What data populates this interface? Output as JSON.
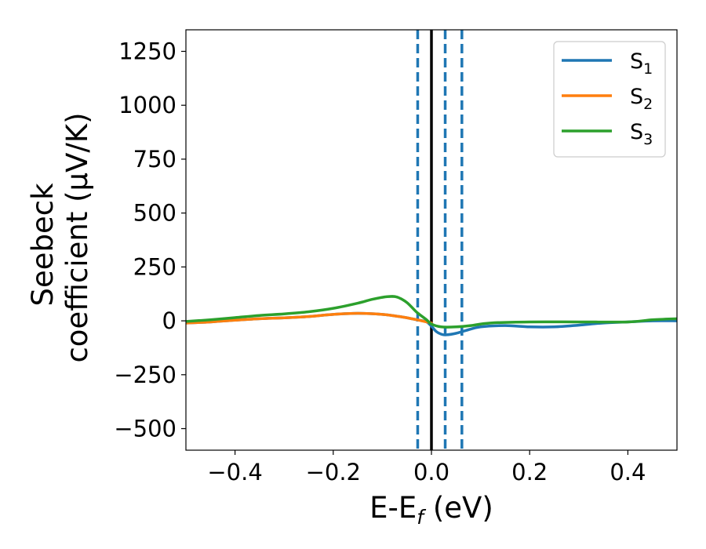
{
  "chart_data": {
    "type": "line",
    "xlabel": {
      "main": "E-E",
      "sub": "f",
      "suffix": " (eV)"
    },
    "ylabel": {
      "line1": "Seebeck",
      "line2": "coefficient  (μV/K)"
    },
    "xlim": [
      -0.5,
      0.5
    ],
    "ylim": [
      -600,
      1350
    ],
    "x_ticks": [
      -0.4,
      -0.2,
      0.0,
      0.2,
      0.4
    ],
    "x_tick_labels": [
      "−0.4",
      "−0.2",
      "0.0",
      "0.2",
      "0.4"
    ],
    "y_ticks": [
      -500,
      -250,
      0,
      250,
      500,
      750,
      1000,
      1250
    ],
    "y_tick_labels": [
      "−500",
      "−250",
      "0",
      "250",
      "500",
      "750",
      "1000",
      "1250"
    ],
    "grid": false,
    "legend_position": "top-right",
    "vlines": [
      {
        "x": 0.0,
        "style": "solid",
        "color": "#000000"
      },
      {
        "x": -0.028,
        "style": "dashed",
        "color": "#1f77b4"
      },
      {
        "x": 0.028,
        "style": "dashed",
        "color": "#1f77b4"
      },
      {
        "x": 0.062,
        "style": "dashed",
        "color": "#1f77b4"
      }
    ],
    "series": [
      {
        "name": "S",
        "sub": "1",
        "color": "#1f77b4",
        "x": [
          -0.5,
          -0.45,
          -0.4,
          -0.35,
          -0.3,
          -0.25,
          -0.2,
          -0.15,
          -0.1,
          -0.06,
          -0.03,
          -0.01,
          0.0,
          0.01,
          0.02,
          0.03,
          0.05,
          0.07,
          0.1,
          0.15,
          0.2,
          0.25,
          0.3,
          0.35,
          0.4,
          0.45,
          0.5
        ],
        "y": [
          -10,
          -5,
          3,
          10,
          14,
          20,
          30,
          35,
          30,
          18,
          5,
          -5,
          -25,
          -50,
          -62,
          -65,
          -58,
          -45,
          -28,
          -22,
          -28,
          -28,
          -20,
          -10,
          -5,
          0,
          0
        ]
      },
      {
        "name": "S",
        "sub": "2",
        "color": "#ff7f0e",
        "x": [
          -0.5,
          -0.45,
          -0.4,
          -0.35,
          -0.3,
          -0.25,
          -0.2,
          -0.15,
          -0.1,
          -0.06,
          -0.03,
          -0.01,
          0.0
        ],
        "y": [
          -10,
          -5,
          3,
          10,
          14,
          20,
          30,
          35,
          30,
          18,
          5,
          -5,
          -10
        ]
      },
      {
        "name": "S",
        "sub": "3",
        "color": "#2ca02c",
        "x": [
          -0.5,
          -0.45,
          -0.4,
          -0.35,
          -0.3,
          -0.25,
          -0.2,
          -0.15,
          -0.12,
          -0.09,
          -0.07,
          -0.05,
          -0.03,
          -0.01,
          0.0,
          0.02,
          0.05,
          0.08,
          0.12,
          0.2,
          0.3,
          0.4,
          0.45,
          0.5
        ],
        "y": [
          -3,
          5,
          15,
          25,
          32,
          42,
          58,
          82,
          100,
          112,
          110,
          85,
          40,
          5,
          -15,
          -28,
          -28,
          -22,
          -10,
          -5,
          -5,
          -5,
          5,
          10
        ]
      }
    ]
  }
}
